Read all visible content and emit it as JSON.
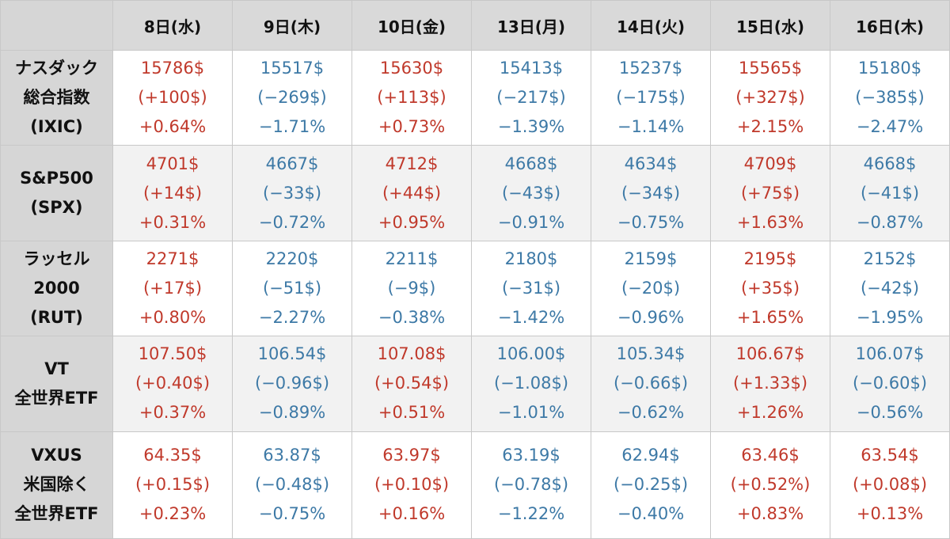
{
  "colors": {
    "up": "#c0392b",
    "down": "#3d79a6",
    "header_bg": "#d9d9d9",
    "label_bg": "#d6d6d6",
    "alt_row_bg": "#f2f2f2"
  },
  "headers": [
    "8日(水)",
    "9日(木)",
    "10日(金)",
    "13日(月)",
    "14日(火)",
    "15日(水)",
    "16日(木)"
  ],
  "rows": [
    {
      "label": [
        "ナスダック",
        "総合指数",
        "(IXIC)"
      ],
      "cells": [
        {
          "trend": "up",
          "price": "15786$",
          "change": "(+100$)",
          "pct": "+0.64%"
        },
        {
          "trend": "down",
          "price": "15517$",
          "change": "(−269$)",
          "pct": "−1.71%"
        },
        {
          "trend": "up",
          "price": "15630$",
          "change": "(+113$)",
          "pct": "+0.73%"
        },
        {
          "trend": "down",
          "price": "15413$",
          "change": "(−217$)",
          "pct": "−1.39%"
        },
        {
          "trend": "down",
          "price": "15237$",
          "change": "(−175$)",
          "pct": "−1.14%"
        },
        {
          "trend": "up",
          "price": "15565$",
          "change": "(+327$)",
          "pct": "+2.15%"
        },
        {
          "trend": "down",
          "price": "15180$",
          "change": "(−385$)",
          "pct": "−2.47%"
        }
      ]
    },
    {
      "label": [
        "S&P500",
        "(SPX)"
      ],
      "cells": [
        {
          "trend": "up",
          "price": "4701$",
          "change": "(+14$)",
          "pct": "+0.31%"
        },
        {
          "trend": "down",
          "price": "4667$",
          "change": "(−33$)",
          "pct": "−0.72%"
        },
        {
          "trend": "up",
          "price": "4712$",
          "change": "(+44$)",
          "pct": "+0.95%"
        },
        {
          "trend": "down",
          "price": "4668$",
          "change": "(−43$)",
          "pct": "−0.91%"
        },
        {
          "trend": "down",
          "price": "4634$",
          "change": "(−34$)",
          "pct": "−0.75%"
        },
        {
          "trend": "up",
          "price": "4709$",
          "change": "(+75$)",
          "pct": "+1.63%"
        },
        {
          "trend": "down",
          "price": "4668$",
          "change": "(−41$)",
          "pct": "−0.87%"
        }
      ]
    },
    {
      "label": [
        "ラッセル",
        "2000",
        "(RUT)"
      ],
      "cells": [
        {
          "trend": "up",
          "price": "2271$",
          "change": "(+17$)",
          "pct": "+0.80%"
        },
        {
          "trend": "down",
          "price": "2220$",
          "change": "(−51$)",
          "pct": "−2.27%"
        },
        {
          "trend": "down",
          "price": "2211$",
          "change": "(−9$)",
          "pct": "−0.38%"
        },
        {
          "trend": "down",
          "price": "2180$",
          "change": "(−31$)",
          "pct": "−1.42%"
        },
        {
          "trend": "down",
          "price": "2159$",
          "change": "(−20$)",
          "pct": "−0.96%"
        },
        {
          "trend": "up",
          "price": "2195$",
          "change": "(+35$)",
          "pct": "+1.65%"
        },
        {
          "trend": "down",
          "price": "2152$",
          "change": "(−42$)",
          "pct": "−1.95%"
        }
      ]
    },
    {
      "label": [
        "VT",
        "全世界ETF"
      ],
      "cells": [
        {
          "trend": "up",
          "price": "107.50$",
          "change": "(+0.40$)",
          "pct": "+0.37%"
        },
        {
          "trend": "down",
          "price": "106.54$",
          "change": "(−0.96$)",
          "pct": "−0.89%"
        },
        {
          "trend": "up",
          "price": "107.08$",
          "change": "(+0.54$)",
          "pct": "+0.51%"
        },
        {
          "trend": "down",
          "price": "106.00$",
          "change": "(−1.08$)",
          "pct": "−1.01%"
        },
        {
          "trend": "down",
          "price": "105.34$",
          "change": "(−0.66$)",
          "pct": "−0.62%"
        },
        {
          "trend": "up",
          "price": "106.67$",
          "change": "(+1.33$)",
          "pct": "+1.26%"
        },
        {
          "trend": "down",
          "price": "106.07$",
          "change": "(−0.60$)",
          "pct": "−0.56%"
        }
      ]
    },
    {
      "label": [
        "VXUS",
        "米国除く",
        "全世界ETF"
      ],
      "cells": [
        {
          "trend": "up",
          "price": "64.35$",
          "change": "(+0.15$)",
          "pct": "+0.23%"
        },
        {
          "trend": "down",
          "price": "63.87$",
          "change": "(−0.48$)",
          "pct": "−0.75%"
        },
        {
          "trend": "up",
          "price": "63.97$",
          "change": "(+0.10$)",
          "pct": "+0.16%"
        },
        {
          "trend": "down",
          "price": "63.19$",
          "change": "(−0.78$)",
          "pct": "−1.22%"
        },
        {
          "trend": "down",
          "price": "62.94$",
          "change": "(−0.25$)",
          "pct": "−0.40%"
        },
        {
          "trend": "up",
          "price": "63.46$",
          "change": "(+0.52%)",
          "pct": "+0.83%"
        },
        {
          "trend": "up",
          "price": "63.54$",
          "change": "(+0.08$)",
          "pct": "+0.13%"
        }
      ]
    }
  ]
}
